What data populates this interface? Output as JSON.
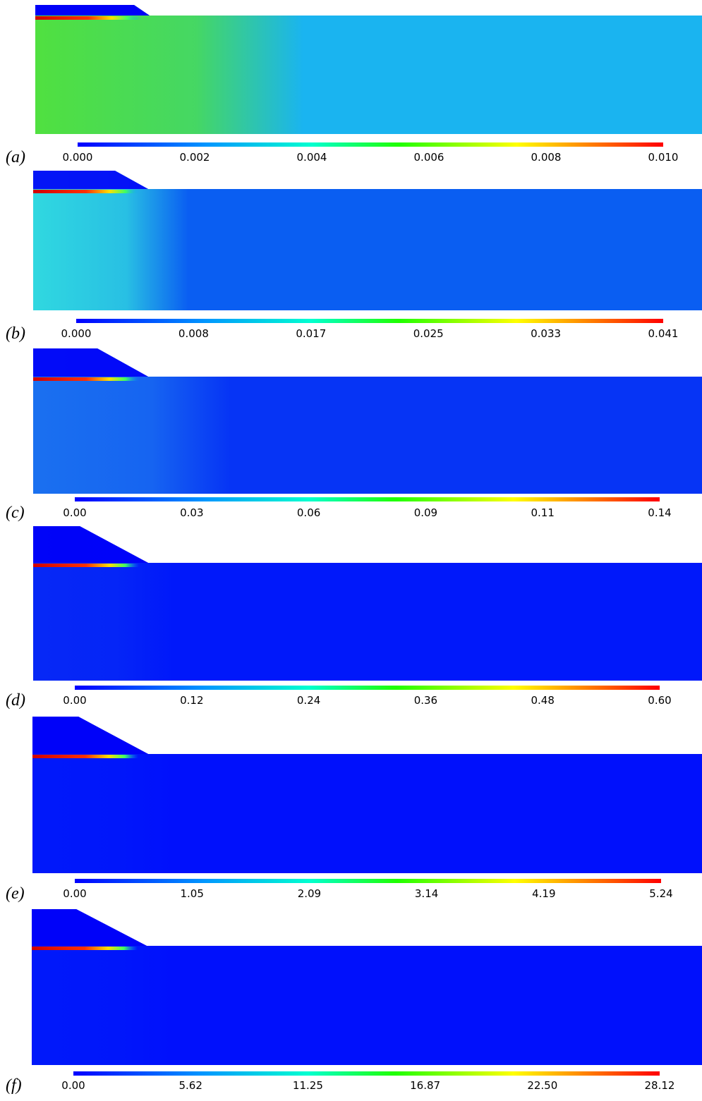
{
  "panels": [
    {
      "label": "(a)",
      "ticks": [
        "0.000",
        "0.002",
        "0.004",
        "0.006",
        "0.008",
        "0.010"
      ]
    },
    {
      "label": "(b)",
      "ticks": [
        "0.000",
        "0.008",
        "0.017",
        "0.025",
        "0.033",
        "0.041"
      ]
    },
    {
      "label": "(c)",
      "ticks": [
        "0.00",
        "0.03",
        "0.06",
        "0.09",
        "0.11",
        "0.14"
      ]
    },
    {
      "label": "(d)",
      "ticks": [
        "0.00",
        "0.12",
        "0.24",
        "0.36",
        "0.48",
        "0.60"
      ]
    },
    {
      "label": "(e)",
      "ticks": [
        "0.00",
        "1.05",
        "2.09",
        "3.14",
        "4.19",
        "5.24"
      ]
    },
    {
      "label": "(f)",
      "ticks": [
        "0.00",
        "5.62",
        "11.25",
        "16.87",
        "22.50",
        "28.12"
      ]
    }
  ]
}
